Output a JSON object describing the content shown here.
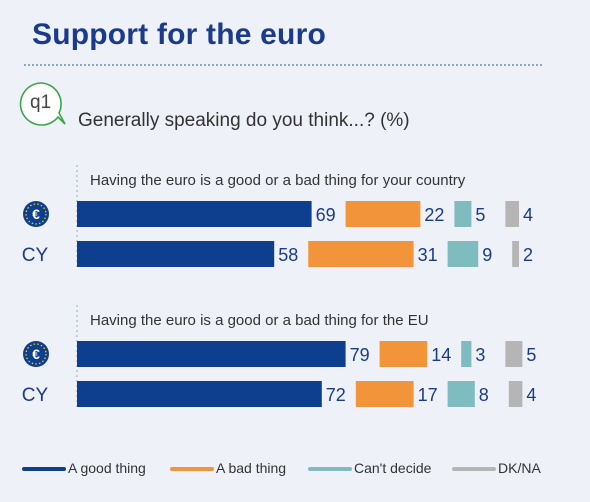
{
  "title": "Support for the euro",
  "question_id": "q1",
  "question": "Generally speaking do you think...? (%)",
  "colors": {
    "good": "#0e3e8e",
    "bad": "#f2953a",
    "cant": "#7fbcc0",
    "dk": "#b5b5b5",
    "euro_badge": "#0e3e8e"
  },
  "legend": [
    {
      "key": "good",
      "label": "A good thing"
    },
    {
      "key": "bad",
      "label": "A bad thing"
    },
    {
      "key": "cant",
      "label": "Can't decide"
    },
    {
      "key": "dk",
      "label": "DK/NA"
    }
  ],
  "chart_data": {
    "type": "bar",
    "stacked": true,
    "orientation": "horizontal",
    "series_names": [
      "A good thing",
      "A bad thing",
      "Can't decide",
      "DK/NA"
    ],
    "groups": [
      {
        "subtitle": "Having the euro is a good or a bad thing for your country",
        "rows": [
          {
            "label": "€",
            "is_euro_icon": true,
            "values": [
              69,
              22,
              5,
              4
            ]
          },
          {
            "label": "CY",
            "is_euro_icon": false,
            "values": [
              58,
              31,
              9,
              2
            ]
          }
        ]
      },
      {
        "subtitle": "Having the euro is a good or a bad thing for the EU",
        "rows": [
          {
            "label": "€",
            "is_euro_icon": true,
            "values": [
              79,
              14,
              3,
              5
            ]
          },
          {
            "label": "CY",
            "is_euro_icon": false,
            "values": [
              72,
              17,
              8,
              4
            ]
          }
        ]
      }
    ]
  }
}
